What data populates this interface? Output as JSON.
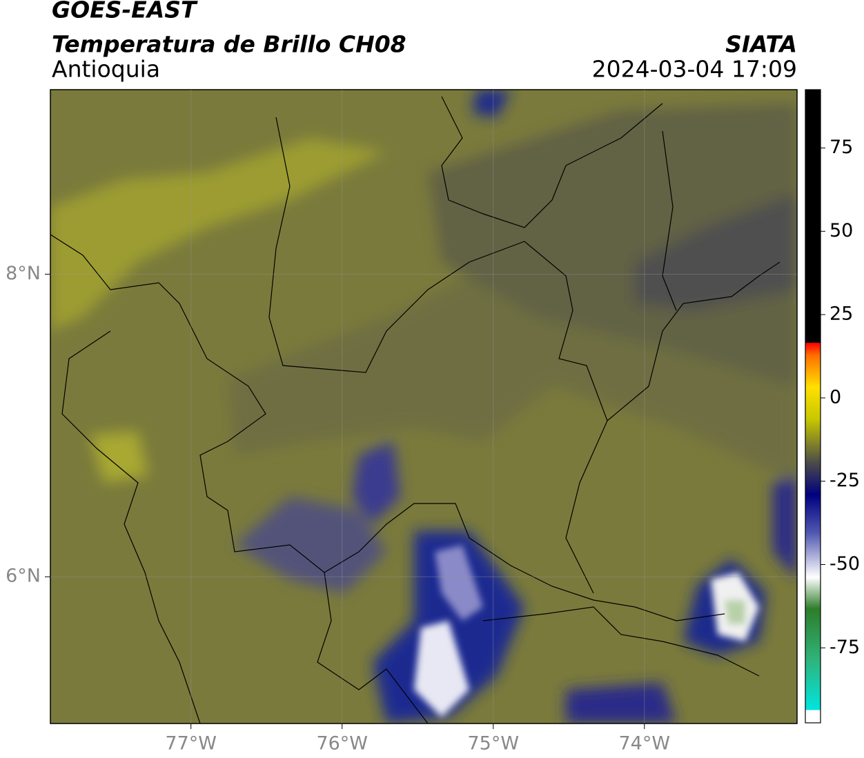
{
  "header": {
    "title": "GOES-EAST",
    "subtitle": "Temperatura de Brillo CH08",
    "source": "SIATA",
    "region": "Antioquia",
    "datetime": "2024-03-04 17:09"
  },
  "map": {
    "xlim": [
      -77.93,
      -72.99
    ],
    "ylim": [
      5.03,
      9.22
    ],
    "xticks": [
      {
        "value": -77,
        "label": "77°W"
      },
      {
        "value": -76,
        "label": "76°W"
      },
      {
        "value": -75,
        "label": "75°W"
      },
      {
        "value": -74,
        "label": "74°W"
      }
    ],
    "yticks": [
      {
        "value": 8,
        "label": "8°N"
      },
      {
        "value": 6,
        "label": "6°N"
      }
    ],
    "grid": true
  },
  "colorbar": {
    "lim": [
      -97.5,
      92.5
    ],
    "ticks": [
      75,
      50,
      25,
      0,
      -25,
      -50,
      -75
    ]
  }
}
